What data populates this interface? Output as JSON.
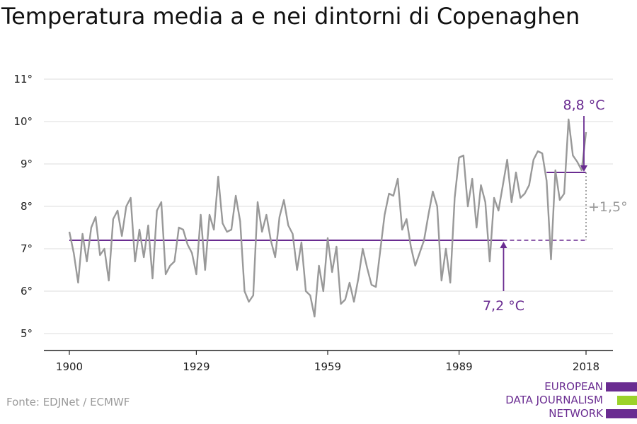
{
  "title": "Temperatura media a e nei dintorni di Copenaghen",
  "source": "Fonte: EDJNet / ECMWF",
  "logo": {
    "lines": [
      "EUROPEAN",
      "DATA JOURNALISM",
      "NETWORK"
    ],
    "colors": [
      "#6a2c91",
      "#9bd22a",
      "#6a2c91"
    ]
  },
  "colors": {
    "series": "#999999",
    "accent": "#6a2c91",
    "difference": "#999999",
    "grid": "#dddddd",
    "axis": "#222222"
  },
  "chart_data": {
    "type": "line",
    "x": [
      1900,
      1901,
      1902,
      1903,
      1904,
      1905,
      1906,
      1907,
      1908,
      1909,
      1910,
      1911,
      1912,
      1913,
      1914,
      1915,
      1916,
      1917,
      1918,
      1919,
      1920,
      1921,
      1922,
      1923,
      1924,
      1925,
      1926,
      1927,
      1928,
      1929,
      1930,
      1931,
      1932,
      1933,
      1934,
      1935,
      1936,
      1937,
      1938,
      1939,
      1940,
      1941,
      1942,
      1943,
      1944,
      1945,
      1946,
      1947,
      1948,
      1949,
      1950,
      1951,
      1952,
      1953,
      1954,
      1955,
      1956,
      1957,
      1958,
      1959,
      1960,
      1961,
      1962,
      1963,
      1964,
      1965,
      1966,
      1967,
      1968,
      1969,
      1970,
      1971,
      1972,
      1973,
      1974,
      1975,
      1976,
      1977,
      1978,
      1979,
      1980,
      1981,
      1982,
      1983,
      1984,
      1985,
      1986,
      1987,
      1988,
      1989,
      1990,
      1991,
      1992,
      1993,
      1994,
      1995,
      1996,
      1997,
      1998,
      1999,
      2000,
      2001,
      2002,
      2003,
      2004,
      2005,
      2006,
      2007,
      2008,
      2009,
      2010,
      2011,
      2012,
      2013,
      2014,
      2015,
      2016,
      2017,
      2018
    ],
    "values": [
      7.4,
      6.9,
      6.2,
      7.35,
      6.7,
      7.5,
      7.75,
      6.85,
      7.0,
      6.25,
      7.7,
      7.9,
      7.3,
      8.0,
      8.2,
      6.7,
      7.45,
      6.8,
      7.55,
      6.3,
      7.9,
      8.1,
      6.4,
      6.6,
      6.7,
      7.5,
      7.45,
      7.1,
      6.9,
      6.4,
      7.8,
      6.5,
      7.8,
      7.45,
      8.7,
      7.6,
      7.4,
      7.45,
      8.25,
      7.65,
      6.0,
      5.75,
      5.9,
      8.1,
      7.4,
      7.8,
      7.2,
      6.8,
      7.75,
      8.15,
      7.55,
      7.35,
      6.5,
      7.15,
      6.0,
      5.9,
      5.4,
      6.6,
      6.0,
      7.25,
      6.45,
      7.05,
      5.7,
      5.8,
      6.2,
      5.75,
      6.3,
      7.0,
      6.55,
      6.15,
      6.1,
      6.95,
      7.8,
      8.3,
      8.25,
      8.65,
      7.45,
      7.7,
      7.05,
      6.6,
      6.9,
      7.2,
      7.8,
      8.35,
      8.0,
      6.25,
      7.0,
      6.2,
      8.2,
      9.15,
      9.2,
      8.0,
      8.65,
      7.5,
      8.5,
      8.1,
      6.7,
      8.2,
      7.9,
      8.5,
      9.1,
      8.1,
      8.8,
      8.2,
      8.3,
      8.5,
      9.1,
      9.3,
      9.25,
      8.6,
      6.75,
      8.85,
      8.15,
      8.3,
      10.05,
      9.2,
      9.05,
      8.85,
      9.75
    ],
    "reference_periods": [
      {
        "from": 1900,
        "to": 1999,
        "value": 7.2,
        "label": "7,2 °C"
      },
      {
        "from": 2009,
        "to": 2018,
        "value": 8.8,
        "label": "8,8 °C"
      }
    ],
    "difference_label": "+1,5°",
    "xticks": [
      1900,
      1929,
      1959,
      1989,
      2018
    ],
    "xtick_labels": [
      "1900",
      "1929",
      "1959",
      "1989",
      "2018"
    ],
    "yticks": [
      5,
      6,
      7,
      8,
      9,
      10,
      11
    ],
    "ytick_labels": [
      "5°",
      "6°",
      "7°",
      "8°",
      "9°",
      "10°",
      "11°"
    ],
    "xlim": [
      1900,
      2018
    ],
    "ylim": [
      4.6,
      11
    ],
    "grid": true,
    "xlabel": "",
    "ylabel": ""
  }
}
